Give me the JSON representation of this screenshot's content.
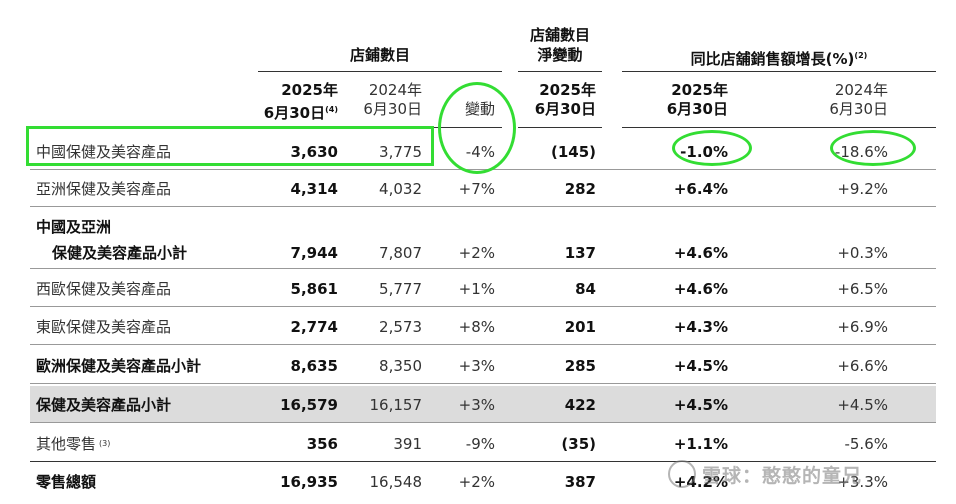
{
  "headers": {
    "store_count": "店鋪數目",
    "net_change": [
      "店舖數目",
      "淨變動"
    ],
    "sales_growth": "同比店舖銷售額增長(%)",
    "sales_growth_note": "(2)",
    "col_2025_year": "2025年",
    "col_2025_date": "6月30日",
    "col_2025_note": "(4)",
    "col_2024_year": "2024年",
    "col_2024_date": "6月30日",
    "col_change": "變動",
    "net_2025_year": "2025年",
    "net_2025_date": "6月30日",
    "growth_2025_year": "2025年",
    "growth_2025_date": "6月30日",
    "growth_2024_year": "2024年",
    "growth_2024_date": "6月30日"
  },
  "rows": [
    {
      "label": "中國保健及美容產品",
      "v2025": "3,630",
      "v2024": "3,775",
      "chg": "-4%",
      "net": "(145)",
      "g2025": "-1.0%",
      "g2024": "-18.6%"
    },
    {
      "label": "亞洲保健及美容產品",
      "v2025": "4,314",
      "v2024": "4,032",
      "chg": "+7%",
      "net": "282",
      "g2025": "+6.4%",
      "g2024": "+9.2%"
    },
    {
      "label1": "中國及亞洲",
      "label2": "保健及美容產品小計",
      "v2025": "7,944",
      "v2024": "7,807",
      "chg": "+2%",
      "net": "137",
      "g2025": "+4.6%",
      "g2024": "+0.3%"
    },
    {
      "label": "西歐保健及美容產品",
      "v2025": "5,861",
      "v2024": "5,777",
      "chg": "+1%",
      "net": "84",
      "g2025": "+4.6%",
      "g2024": "+6.5%"
    },
    {
      "label": "東歐保健及美容產品",
      "v2025": "2,774",
      "v2024": "2,573",
      "chg": "+8%",
      "net": "201",
      "g2025": "+4.3%",
      "g2024": "+6.9%"
    },
    {
      "label": "歐洲保健及美容產品小計",
      "v2025": "8,635",
      "v2024": "8,350",
      "chg": "+3%",
      "net": "285",
      "g2025": "+4.5%",
      "g2024": "+6.6%"
    },
    {
      "label": "保健及美容產品小計",
      "v2025": "16,579",
      "v2024": "16,157",
      "chg": "+3%",
      "net": "422",
      "g2025": "+4.5%",
      "g2024": "+4.5%"
    },
    {
      "label": "其他零售",
      "note": "(3)",
      "v2025": "356",
      "v2024": "391",
      "chg": "-9%",
      "net": "(35)",
      "g2025": "+1.1%",
      "g2024": "-5.6%"
    },
    {
      "label": "零售總額",
      "v2025": "16,935",
      "v2024": "16,548",
      "chg": "+2%",
      "net": "387",
      "g2025": "+4.2%",
      "g2024": "+3.3%"
    }
  ],
  "watermark": "雪球：憨憨的童兄",
  "highlight_color": "#33dd33"
}
